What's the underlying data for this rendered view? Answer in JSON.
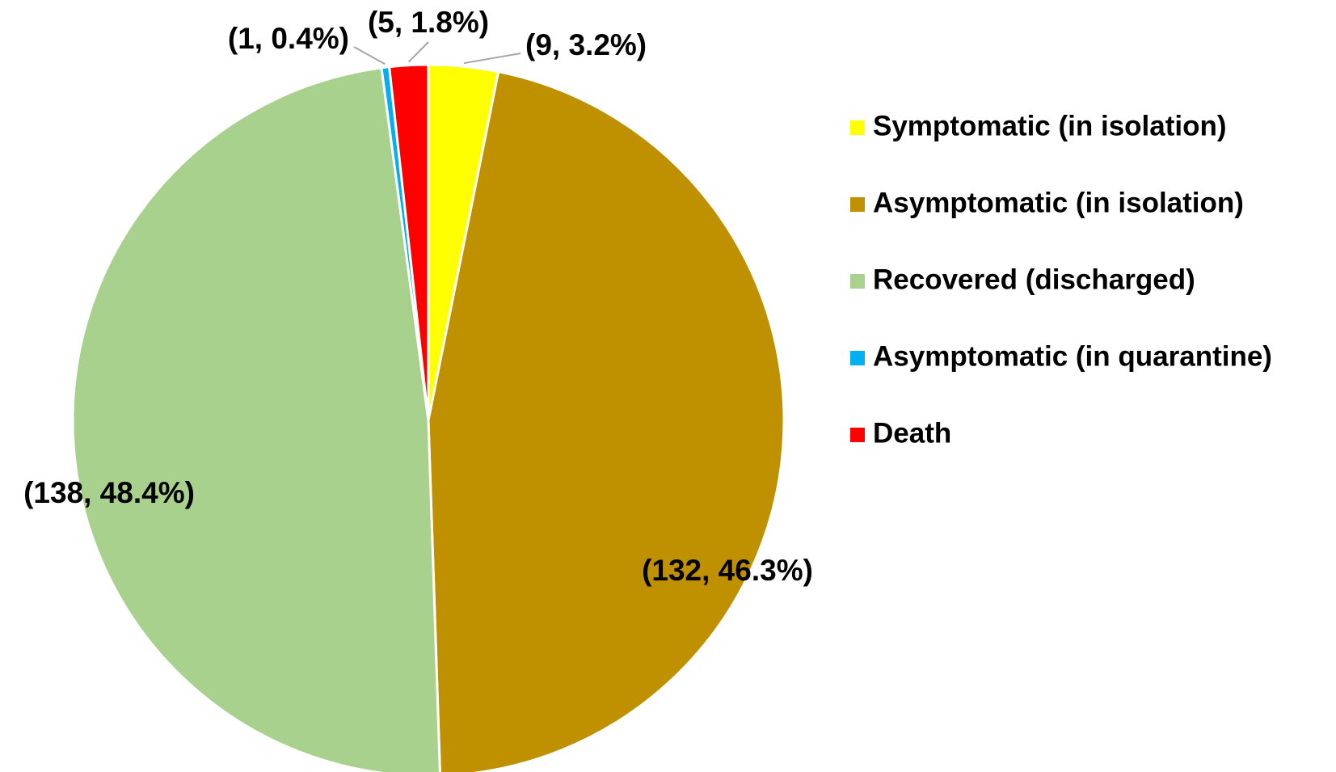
{
  "chart_data": {
    "type": "pie",
    "categories": [
      "Symptomatic (in isolation)",
      "Asymptomatic (in isolation)",
      "Recovered (discharged)",
      "Asymptomatic (in quarantine)",
      "Death"
    ],
    "values": [
      9,
      132,
      138,
      1,
      5
    ],
    "value_labels": [
      "(9, 3.2%)",
      "(132, 46.3%)",
      "(138, 48.4%)",
      "(1, 0.4%)",
      "(5, 1.8%)"
    ],
    "colors": [
      "#ffff00",
      "#bf9000",
      "#a9d18e",
      "#00b0f0",
      "#ff0000"
    ],
    "legend": "right"
  }
}
